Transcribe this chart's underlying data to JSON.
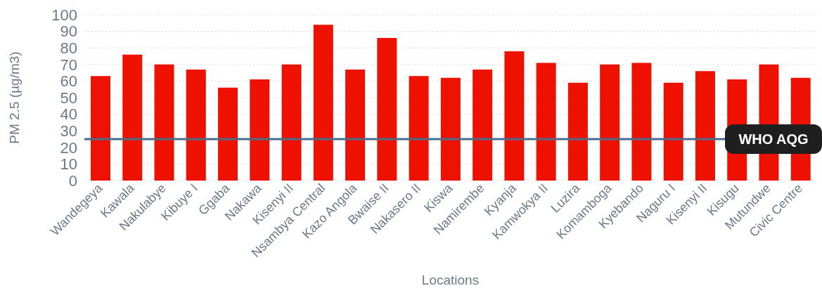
{
  "chart_data": {
    "type": "bar",
    "xlabel": "Locations",
    "ylabel": "PM 2.5 (µg/m3)",
    "categories": [
      "Wandegeya",
      "Kawala",
      "Nakulabye",
      "Kibuye I",
      "Ggaba",
      "Nakawa",
      "Kisenyi II",
      "Nsambya Central",
      "Kazo Angola",
      "Bwaise II",
      "Nakasero II",
      "Kiswa",
      "Namirembe",
      "Kyanja",
      "Kamwokya II",
      "Luzira",
      "Komamboga",
      "Kyebando",
      "Naguru I",
      "Kisenyi II",
      "Kisugu",
      "Mutundwe",
      "Civic Centre"
    ],
    "values": [
      63,
      76,
      70,
      67,
      56,
      61,
      70,
      94,
      67,
      86,
      63,
      62,
      67,
      78,
      71,
      59,
      70,
      71,
      59,
      66,
      61,
      70,
      62
    ],
    "color": "#ee1100",
    "ylim": [
      0,
      100
    ],
    "yticks": [
      0,
      10,
      20,
      30,
      40,
      50,
      60,
      70,
      80,
      90,
      100
    ],
    "grid": "y",
    "ref_lines": [
      {
        "axis": "y",
        "value": 25,
        "label": "WHO AQG",
        "color": "#4a6c8c"
      }
    ]
  }
}
